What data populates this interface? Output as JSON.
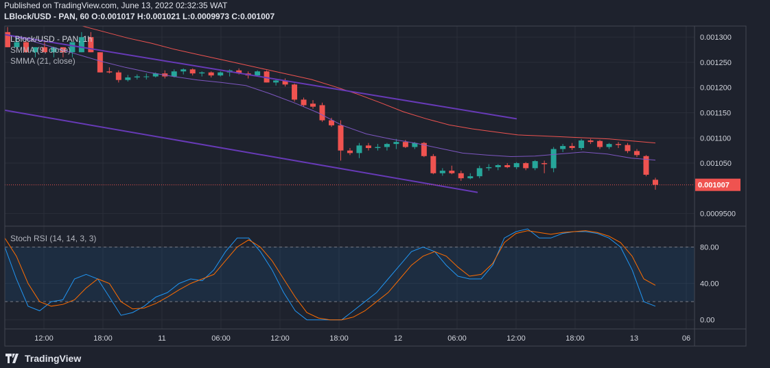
{
  "header": {
    "published": "Published on TradingView.com, June 13, 2022 02:32:35 WAT",
    "symbol": "LBlock/USD - PAN, 60",
    "o_label": "O:",
    "o_value": "0.001017",
    "h_label": "H:",
    "h_value": "0.001021",
    "l_label": "L:",
    "l_value": "0.0009973",
    "c_label": "C:",
    "c_value": "0.001007"
  },
  "legend": {
    "symbol": "LBlock/USD - PAN, 1h",
    "smma9": "SMMA (9, close)",
    "smma21": "SMMA (21, close)",
    "stoch": "Stoch RSI (14, 14, 3, 3)"
  },
  "price_axis": {
    "ticks": [
      "0.001300",
      "0.001250",
      "0.001200",
      "0.001150",
      "0.001100",
      "0.001050",
      "0.0009500"
    ],
    "current": "0.001007"
  },
  "osc_axis": {
    "ticks": [
      "80.00",
      "40.00",
      "0.00"
    ]
  },
  "time_axis": {
    "ticks": [
      "12:00",
      "18:00",
      "11",
      "06:00",
      "12:00",
      "18:00",
      "12",
      "06:00",
      "12:00",
      "18:00",
      "13",
      "06"
    ]
  },
  "brand": {
    "name": "TradingView"
  },
  "colors": {
    "bg": "#1e222d",
    "up": "#26a69a",
    "down": "#ef5350",
    "smma9": "#7e57c2",
    "smma21": "#ef5350",
    "channel": "#673ab7",
    "k": "#2196f3",
    "d": "#ff6d00"
  },
  "chart_data": [
    {
      "type": "candlestick",
      "ylim": [
        0.000925,
        0.001322
      ],
      "candles": [
        [
          0.00131,
          0.00132,
          0.00128,
          0.00128
        ],
        [
          0.00128,
          0.0013,
          0.00127,
          0.00129
        ],
        [
          0.00129,
          0.0013,
          0.00127,
          0.00127
        ],
        [
          0.00127,
          0.00128,
          0.00126,
          0.00128
        ],
        [
          0.00128,
          0.00129,
          0.00127,
          0.00127
        ],
        [
          0.00127,
          0.00128,
          0.00126,
          0.00128
        ],
        [
          0.00128,
          0.00128,
          0.00126,
          0.00127
        ],
        [
          0.00127,
          0.00129,
          0.00126,
          0.00129
        ],
        [
          0.00127,
          0.00131,
          0.00127,
          0.0013
        ],
        [
          0.0013,
          0.00131,
          0.00127,
          0.00127
        ],
        [
          0.00127,
          0.00127,
          0.00123,
          0.00123
        ],
        [
          0.001232,
          0.00124,
          0.001228,
          0.00123
        ],
        [
          0.00123,
          0.001234,
          0.00121,
          0.001215
        ],
        [
          0.001215,
          0.001225,
          0.001212,
          0.00122
        ],
        [
          0.00122,
          0.001226,
          0.001216,
          0.001222
        ],
        [
          0.001222,
          0.001228,
          0.001216,
          0.001222
        ],
        [
          0.001222,
          0.00123,
          0.00122,
          0.001228
        ],
        [
          0.001228,
          0.001234,
          0.001218,
          0.001222
        ],
        [
          0.001222,
          0.001236,
          0.00122,
          0.001232
        ],
        [
          0.001232,
          0.001238,
          0.001226,
          0.001236
        ],
        [
          0.001236,
          0.001238,
          0.001224,
          0.001228
        ],
        [
          0.001228,
          0.001232,
          0.001222,
          0.00123
        ],
        [
          0.00123,
          0.001232,
          0.00122,
          0.001224
        ],
        [
          0.001224,
          0.001232,
          0.001222,
          0.00123
        ],
        [
          0.00123,
          0.001236,
          0.001222,
          0.001234
        ],
        [
          0.001234,
          0.001238,
          0.001226,
          0.001228
        ],
        [
          0.001228,
          0.001232,
          0.001218,
          0.001224
        ],
        [
          0.001224,
          0.001234,
          0.001222,
          0.001232
        ],
        [
          0.001232,
          0.001234,
          0.00121,
          0.00121
        ],
        [
          0.00121,
          0.001216,
          0.001204,
          0.001214
        ],
        [
          0.001214,
          0.001218,
          0.001202,
          0.001206
        ],
        [
          0.001206,
          0.001208,
          0.001172,
          0.001176
        ],
        [
          0.001176,
          0.00118,
          0.001162,
          0.001165
        ],
        [
          0.001168,
          0.001175,
          0.001158,
          0.001162
        ],
        [
          0.001165,
          0.00117,
          0.001132,
          0.001135
        ],
        [
          0.001135,
          0.00114,
          0.001122,
          0.001125
        ],
        [
          0.001125,
          0.001135,
          0.001055,
          0.001075
        ],
        [
          0.001075,
          0.00108,
          0.001066,
          0.00107
        ],
        [
          0.00107,
          0.00109,
          0.00106,
          0.001085
        ],
        [
          0.001085,
          0.00109,
          0.001075,
          0.00108
        ],
        [
          0.00108,
          0.001088,
          0.001075,
          0.001082
        ],
        [
          0.001082,
          0.00109,
          0.001075,
          0.001088
        ],
        [
          0.001088,
          0.001098,
          0.001078,
          0.001092
        ],
        [
          0.001092,
          0.001096,
          0.00108,
          0.001082
        ],
        [
          0.001082,
          0.001092,
          0.001078,
          0.00109
        ],
        [
          0.00109,
          0.001092,
          0.001062,
          0.001064
        ],
        [
          0.001064,
          0.001068,
          0.001028,
          0.00103
        ],
        [
          0.00103,
          0.00104,
          0.001025,
          0.001035
        ],
        [
          0.001035,
          0.001045,
          0.001028,
          0.00103
        ],
        [
          0.00103,
          0.001035,
          0.001015,
          0.00102
        ],
        [
          0.00102,
          0.00103,
          0.001018,
          0.001024
        ],
        [
          0.001024,
          0.001045,
          0.00102,
          0.00104
        ],
        [
          0.00104,
          0.001048,
          0.001035,
          0.001042
        ],
        [
          0.001042,
          0.001048,
          0.001036,
          0.001046
        ],
        [
          0.001046,
          0.00105,
          0.00104,
          0.001042
        ],
        [
          0.001042,
          0.001052,
          0.001038,
          0.00105
        ],
        [
          0.00105,
          0.001052,
          0.001036,
          0.00104
        ],
        [
          0.00104,
          0.001056,
          0.001036,
          0.001054
        ],
        [
          0.00105,
          0.001055,
          0.00103,
          0.001048
        ],
        [
          0.00104,
          0.001082,
          0.001032,
          0.001078
        ],
        [
          0.001078,
          0.001088,
          0.001072,
          0.001084
        ],
        [
          0.001084,
          0.00109,
          0.001076,
          0.00108
        ],
        [
          0.00108,
          0.001098,
          0.001076,
          0.001095
        ],
        [
          0.001095,
          0.001098,
          0.001088,
          0.001092
        ],
        [
          0.001094,
          0.001096,
          0.001078,
          0.001082
        ],
        [
          0.001082,
          0.00109,
          0.001078,
          0.001088
        ],
        [
          0.001088,
          0.001092,
          0.00108,
          0.001086
        ],
        [
          0.001086,
          0.00109,
          0.00107,
          0.001074
        ],
        [
          0.001074,
          0.001078,
          0.001062,
          0.001066
        ],
        [
          0.001064,
          0.001066,
          0.001024,
          0.001027
        ],
        [
          0.001017,
          0.001021,
          0.0009973,
          0.001007
        ]
      ],
      "smma9": [
        0.001305,
        0.001294,
        0.00128,
        0.001266,
        0.001252,
        0.00124,
        0.00123,
        0.001222,
        0.001215,
        0.00121,
        0.001204,
        0.001188,
        0.00117,
        0.00115,
        0.001125,
        0.001108,
        0.001098,
        0.00109,
        0.00108,
        0.00107,
        0.001066,
        0.001063,
        0.001064,
        0.001068,
        0.001072,
        0.001068,
        0.00106,
        0.001056
      ],
      "smma21": [
        0.001322,
        0.00131,
        0.001298,
        0.001288,
        0.001276,
        0.001266,
        0.001256,
        0.001246,
        0.001236,
        0.001226,
        0.001216,
        0.001202,
        0.001187,
        0.00117,
        0.001152,
        0.001138,
        0.001126,
        0.001118,
        0.001112,
        0.001106,
        0.001104,
        0.001102,
        0.0011,
        0.001098,
        0.001094,
        0.00109
      ],
      "channel_upper": [
        0.001305,
        0.001138
      ],
      "channel_lower": [
        0.001155,
        0.000992
      ]
    },
    {
      "type": "line",
      "ylim": [
        -10,
        103
      ],
      "levels": [
        80,
        20
      ],
      "k": [
        80,
        45,
        15,
        10,
        20,
        22,
        45,
        50,
        45,
        25,
        5,
        8,
        15,
        25,
        30,
        40,
        45,
        43,
        55,
        75,
        90,
        90,
        75,
        55,
        30,
        10,
        0,
        0,
        0,
        0,
        10,
        20,
        30,
        45,
        60,
        75,
        80,
        75,
        60,
        48,
        45,
        45,
        60,
        90,
        97,
        100,
        90,
        90,
        95,
        97,
        97,
        95,
        90,
        80,
        55,
        20,
        15
      ],
      "d": [
        90,
        70,
        40,
        20,
        15,
        17,
        22,
        35,
        45,
        40,
        20,
        12,
        13,
        18,
        25,
        33,
        40,
        45,
        50,
        65,
        80,
        88,
        80,
        65,
        45,
        25,
        8,
        2,
        0,
        0,
        3,
        10,
        20,
        30,
        45,
        60,
        70,
        75,
        70,
        58,
        48,
        50,
        62,
        85,
        95,
        98,
        96,
        94,
        96,
        97,
        98,
        96,
        92,
        85,
        70,
        45,
        38
      ]
    }
  ]
}
